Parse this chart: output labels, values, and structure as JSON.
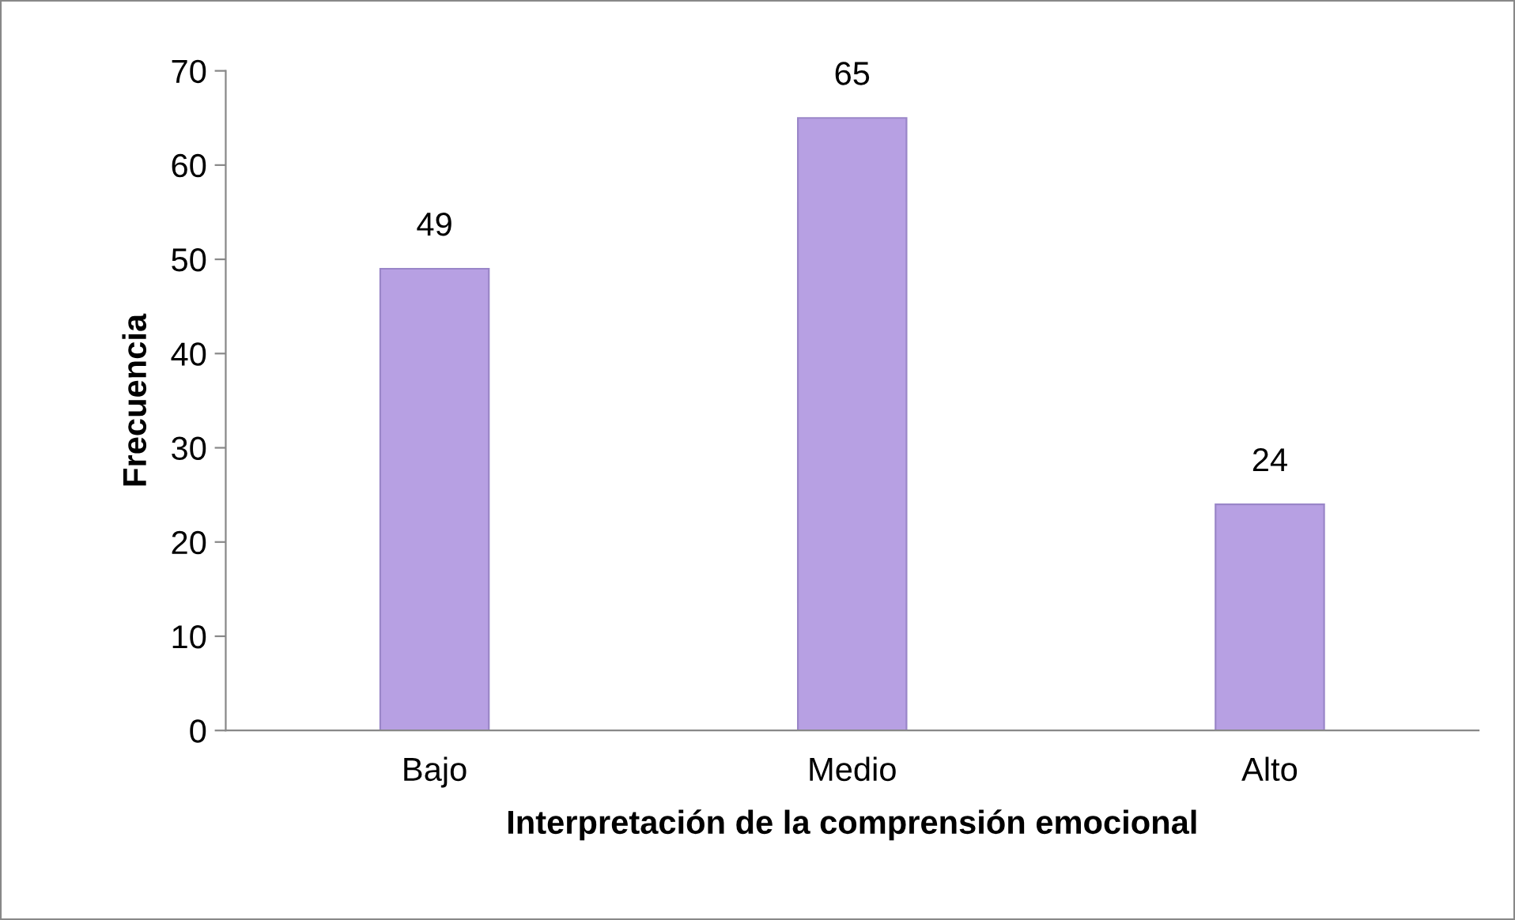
{
  "chart_data": {
    "type": "bar",
    "xlabel": "Interpretación de la comprensión emocional",
    "ylabel": "Frecuencia",
    "categories": [
      "Bajo",
      "Medio",
      "Alto"
    ],
    "values": [
      49,
      65,
      24
    ],
    "color": "#b7a0e3",
    "ylim": [
      0,
      70
    ],
    "yticks": [
      0,
      10,
      20,
      30,
      40,
      50,
      60,
      70
    ],
    "grid": false,
    "data_labels": true
  }
}
